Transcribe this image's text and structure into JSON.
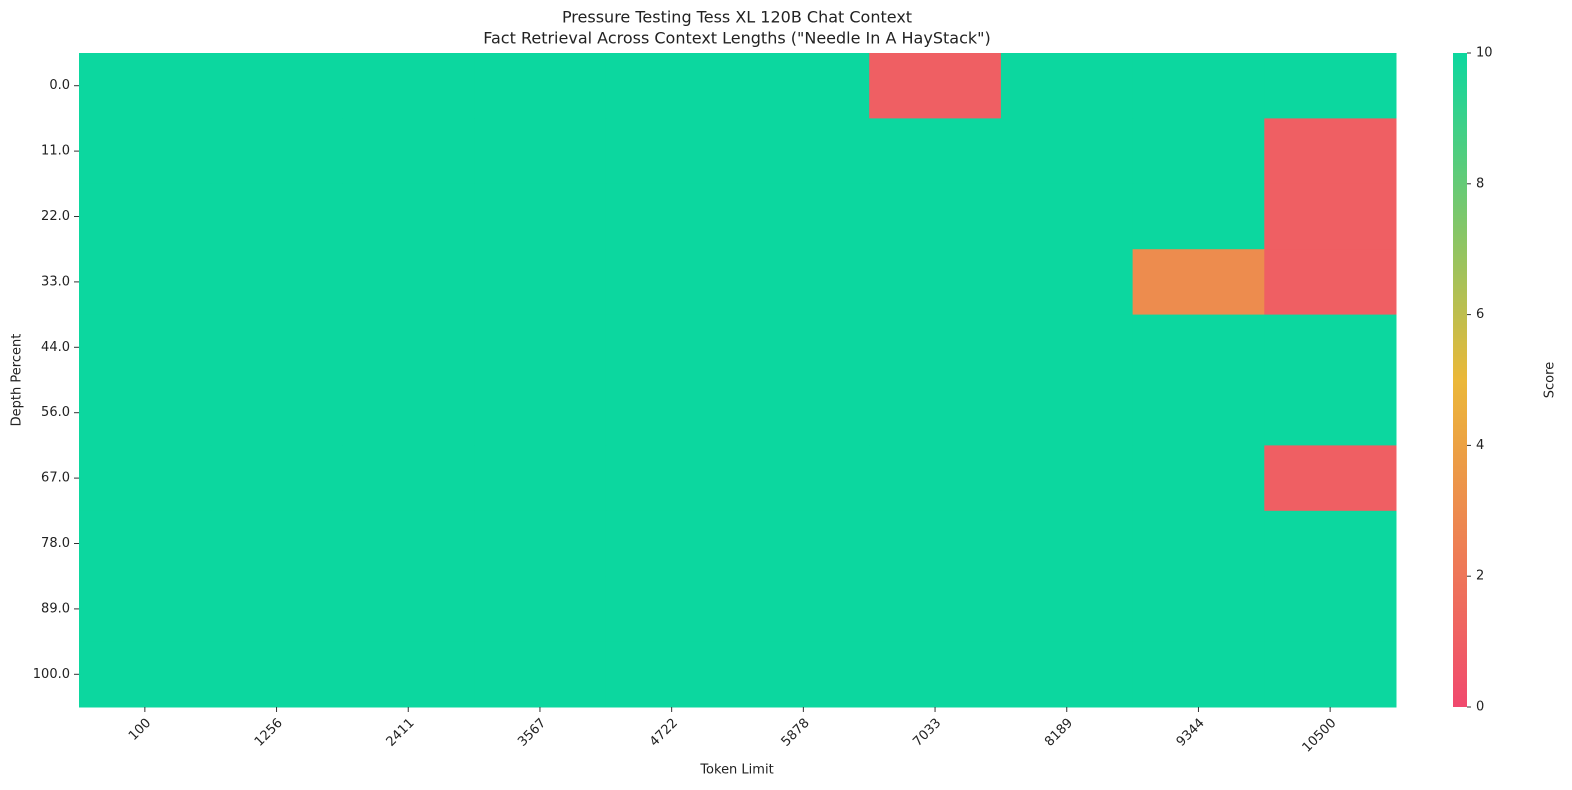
{
  "chart_data": {
    "type": "heatmap",
    "title": "Pressure Testing Tess XL 120B Chat Context",
    "subtitle": "Fact Retrieval Across Context Lengths (\"Needle In A HayStack\")",
    "x_label": "Token Limit",
    "y_label": "Depth Percent",
    "x_categories": [
      "100",
      "1256",
      "2411",
      "3567",
      "4722",
      "5878",
      "7033",
      "8189",
      "9344",
      "10500"
    ],
    "y_categories": [
      "0.0",
      "11.0",
      "22.0",
      "33.0",
      "44.0",
      "56.0",
      "67.0",
      "78.0",
      "89.0",
      "100.0"
    ],
    "values": [
      [
        10,
        10,
        10,
        10,
        10,
        10,
        1,
        10,
        10,
        10
      ],
      [
        10,
        10,
        10,
        10,
        10,
        10,
        10,
        10,
        10,
        1
      ],
      [
        10,
        10,
        10,
        10,
        10,
        10,
        10,
        10,
        10,
        1
      ],
      [
        10,
        10,
        10,
        10,
        10,
        10,
        10,
        10,
        3,
        1
      ],
      [
        10,
        10,
        10,
        10,
        10,
        10,
        10,
        10,
        10,
        10
      ],
      [
        10,
        10,
        10,
        10,
        10,
        10,
        10,
        10,
        10,
        10
      ],
      [
        10,
        10,
        10,
        10,
        10,
        10,
        10,
        10,
        10,
        1
      ],
      [
        10,
        10,
        10,
        10,
        10,
        10,
        10,
        10,
        10,
        10
      ],
      [
        10,
        10,
        10,
        10,
        10,
        10,
        10,
        10,
        10,
        10
      ],
      [
        10,
        10,
        10,
        10,
        10,
        10,
        10,
        10,
        10,
        10
      ]
    ],
    "colors": [
      "#F0496E",
      "#EBB839",
      "#0CD79F"
    ],
    "colorbar_label": "Score",
    "clim": [
      0,
      10
    ],
    "cticks": [
      0,
      2,
      4,
      6,
      8,
      10
    ]
  }
}
